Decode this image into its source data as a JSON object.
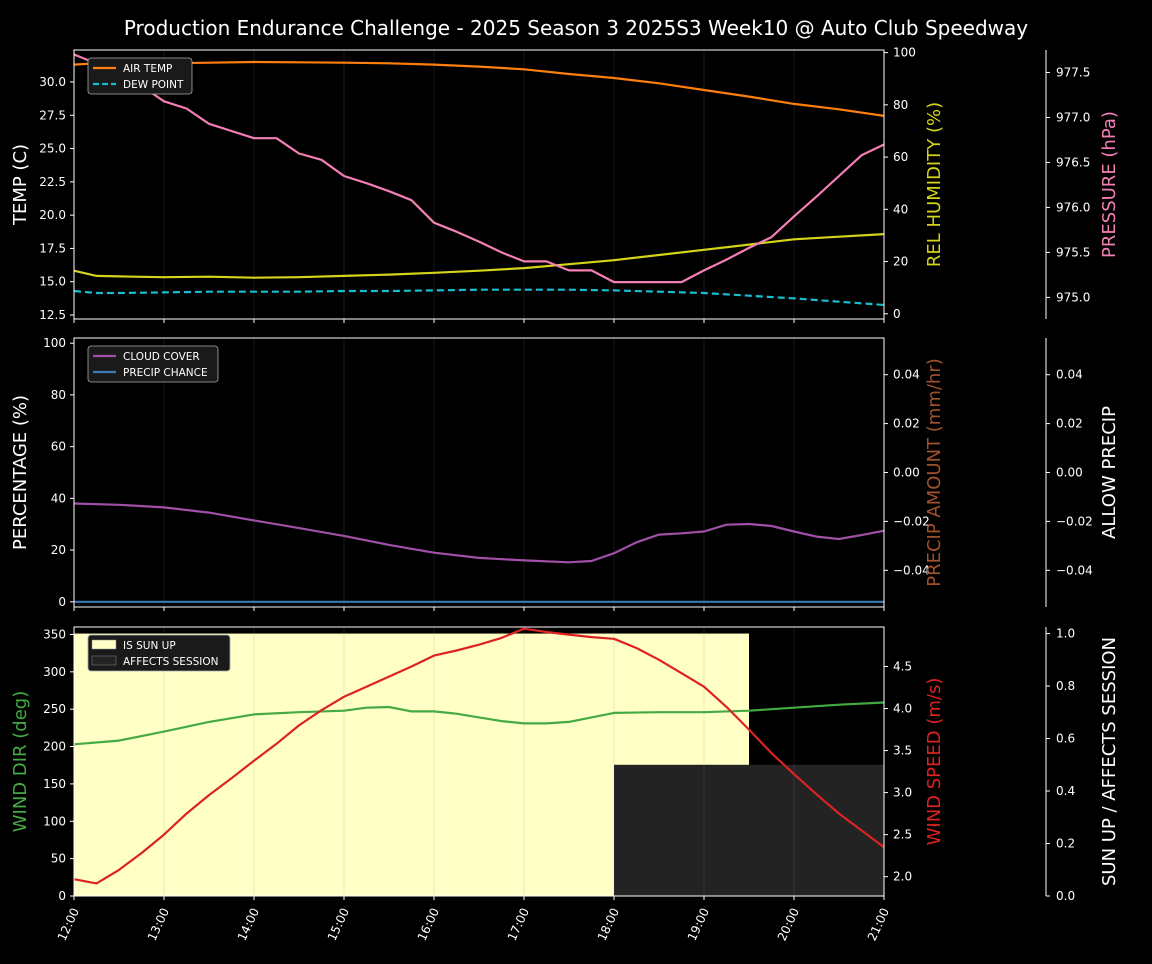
{
  "title": "Production Endurance Challenge - 2025 Season 3 2025S3 Week10 @ Auto Club Speedway",
  "colors": {
    "air_temp": "#ff7f0e",
    "dew_point": "#17becf",
    "humidity": "#d4d41a",
    "pressure": "#f47fb6",
    "cloud": "#a050a8",
    "precip_chance": "#3c7ab4",
    "wind_dir": "#44aa44",
    "wind_speed": "#dd2222",
    "sun_up": "#ffffc6",
    "affects": "#232323",
    "precip_label": "#a0522d",
    "axis": "#ffffff",
    "grid": "#2a2a2a"
  },
  "chart_data": [
    {
      "type": "line",
      "name": "temperature-panel",
      "x_ticks": [
        "12:00",
        "13:00",
        "14:00",
        "15:00",
        "16:00",
        "17:00",
        "18:00",
        "19:00",
        "20:00",
        "21:00"
      ],
      "xlim": [
        0,
        9
      ],
      "left_axis": {
        "label": "TEMP (C)",
        "ylim": [
          12.2,
          32.4
        ],
        "ticks": [
          12.5,
          15.0,
          17.5,
          20.0,
          22.5,
          25.0,
          27.5,
          30.0
        ]
      },
      "right_axis": {
        "label": "REL HUMIDITY (%)",
        "ylim": [
          -2,
          101
        ],
        "ticks": [
          0,
          20,
          40,
          60,
          80,
          100
        ]
      },
      "far_right_axis": {
        "label": "PRESSURE (hPa)",
        "ylim": [
          974.76,
          977.75
        ],
        "ticks": [
          975.0,
          975.5,
          976.0,
          976.5,
          977.0,
          977.5
        ]
      },
      "legend": {
        "placement": "top-left",
        "entries": [
          "AIR TEMP",
          "DEW POINT"
        ]
      },
      "series": [
        {
          "name": "AIR TEMP",
          "axis": "left",
          "style": "solid",
          "color_key": "air_temp",
          "x": [
            0,
            0.25,
            0.5,
            0.75,
            1,
            1.5,
            2,
            2.5,
            3,
            3.5,
            4,
            4.5,
            5,
            5.5,
            6,
            6.5,
            7,
            7.5,
            8,
            8.5,
            9
          ],
          "y": [
            31.3,
            31.4,
            31.4,
            31.4,
            31.4,
            31.45,
            31.5,
            31.48,
            31.45,
            31.4,
            31.3,
            31.15,
            30.95,
            30.6,
            30.3,
            29.9,
            29.4,
            28.9,
            28.35,
            27.95,
            27.45
          ]
        },
        {
          "name": "DEW POINT",
          "axis": "left",
          "style": "dashed",
          "color_key": "dew_point",
          "x": [
            0,
            0.25,
            0.5,
            1,
            1.5,
            2,
            2.5,
            3,
            3.5,
            4,
            4.5,
            5,
            5.5,
            6,
            6.5,
            7,
            7.5,
            8,
            8.5,
            9
          ],
          "y": [
            14.3,
            14.15,
            14.15,
            14.2,
            14.25,
            14.25,
            14.25,
            14.3,
            14.3,
            14.35,
            14.4,
            14.4,
            14.4,
            14.35,
            14.25,
            14.15,
            13.95,
            13.75,
            13.5,
            13.25
          ]
        },
        {
          "name": "REL HUMIDITY",
          "axis": "right",
          "style": "solid",
          "color_key": "humidity",
          "x": [
            0,
            0.25,
            0.5,
            1,
            1.5,
            2,
            2.5,
            3,
            3.5,
            4,
            4.5,
            5,
            5.5,
            6,
            6.5,
            7,
            7.5,
            8,
            8.5,
            9
          ],
          "y": [
            16.5,
            14.5,
            14.3,
            14,
            14.2,
            13.8,
            14,
            14.5,
            15,
            15.7,
            16.5,
            17.5,
            19,
            20.5,
            22.5,
            24.5,
            26.5,
            28.5,
            29.5,
            30.5
          ]
        },
        {
          "name": "PRESSURE",
          "axis": "far_right",
          "style": "solid",
          "color_key": "pressure",
          "x": [
            0,
            0.25,
            0.5,
            0.75,
            1,
            1.25,
            1.5,
            1.75,
            2,
            2.25,
            2.5,
            2.75,
            3,
            3.25,
            3.5,
            3.75,
            4,
            4.25,
            4.5,
            4.75,
            5,
            5.25,
            5.5,
            5.75,
            6,
            6.25,
            6.5,
            6.75,
            7,
            7.25,
            7.5,
            7.75,
            8,
            8.25,
            8.5,
            8.75,
            9
          ],
          "y": [
            977.7,
            977.6,
            977.42,
            977.35,
            977.18,
            977.1,
            976.93,
            976.85,
            976.77,
            976.77,
            976.6,
            976.53,
            976.35,
            976.27,
            976.18,
            976.08,
            975.83,
            975.73,
            975.62,
            975.5,
            975.4,
            975.4,
            975.3,
            975.3,
            975.17,
            975.17,
            975.17,
            975.17,
            975.3,
            975.42,
            975.55,
            975.67,
            975.9,
            976.12,
            976.35,
            976.58,
            976.7
          ]
        }
      ]
    },
    {
      "type": "line",
      "name": "cloud-precip-panel",
      "x_ticks": [
        "12:00",
        "13:00",
        "14:00",
        "15:00",
        "16:00",
        "17:00",
        "18:00",
        "19:00",
        "20:00",
        "21:00"
      ],
      "xlim": [
        0,
        9
      ],
      "left_axis": {
        "label": "PERCENTAGE (%)",
        "ylim": [
          -2,
          102
        ],
        "ticks": [
          0,
          20,
          40,
          60,
          80,
          100
        ]
      },
      "right_axis": {
        "label": "PRECIP AMOUNT (mm/hr)",
        "ylim": [
          -0.055,
          0.055
        ],
        "ticks": [
          "−0.04",
          "−0.02",
          "0.00",
          "0.02",
          "0.04"
        ]
      },
      "far_right_axis": {
        "label": "ALLOW PRECIP",
        "ylim": [
          -0.055,
          0.055
        ],
        "ticks": [
          "−0.04",
          "−0.02",
          "0.00",
          "0.02",
          "0.04"
        ]
      },
      "legend": {
        "placement": "top-left",
        "entries": [
          "CLOUD COVER",
          "PRECIP CHANCE"
        ]
      },
      "series": [
        {
          "name": "CLOUD COVER",
          "axis": "left",
          "color_key": "cloud",
          "x": [
            0,
            0.5,
            1,
            1.5,
            2,
            2.5,
            3,
            3.5,
            4,
            4.5,
            5,
            5.5,
            5.75,
            6,
            6.25,
            6.5,
            6.75,
            7,
            7.25,
            7.5,
            7.75,
            8,
            8.25,
            8.5,
            8.75,
            9
          ],
          "y": [
            38,
            37.5,
            36.5,
            34.5,
            31.5,
            28.5,
            25.5,
            22,
            19,
            17,
            16,
            15.3,
            15.8,
            18.8,
            23,
            26,
            26.5,
            27.2,
            29.8,
            30.1,
            29.3,
            27.2,
            25.2,
            24.3,
            25.8,
            27.5
          ]
        },
        {
          "name": "PRECIP CHANCE",
          "axis": "left",
          "color_key": "precip_chance",
          "x": [
            0,
            9
          ],
          "y": [
            0,
            0
          ]
        }
      ]
    },
    {
      "type": "line",
      "name": "wind-sun-panel",
      "x_ticks": [
        "12:00",
        "13:00",
        "14:00",
        "15:00",
        "16:00",
        "17:00",
        "18:00",
        "19:00",
        "20:00",
        "21:00"
      ],
      "xlim": [
        0,
        9
      ],
      "left_axis": {
        "label": "WIND DIR (deg)",
        "ylim": [
          0,
          360
        ],
        "ticks": [
          0,
          50,
          100,
          150,
          200,
          250,
          300,
          350
        ]
      },
      "right_axis": {
        "label": "WIND SPEED (m/s)",
        "ylim": [
          1.77,
          4.97
        ],
        "ticks": [
          2.0,
          2.5,
          3.0,
          3.5,
          4.0,
          4.5
        ]
      },
      "far_right_axis": {
        "label": "SUN UP / AFFECTS SESSION",
        "ylim": [
          0,
          1.025
        ],
        "ticks": [
          0.0,
          0.2,
          0.4,
          0.6,
          0.8,
          1.0
        ]
      },
      "legend": {
        "placement": "top-left",
        "entries": [
          "IS SUN UP",
          "AFFECTS SESSION"
        ]
      },
      "bands": [
        {
          "name": "IS SUN UP",
          "color_key": "sun_up",
          "x_from": 0,
          "x_to": 7.5,
          "value": 1.0
        },
        {
          "name": "AFFECTS SESSION",
          "color_key": "affects",
          "x_from": 6,
          "x_to": 9,
          "value": 0.5
        }
      ],
      "series": [
        {
          "name": "WIND DIR",
          "axis": "left",
          "color_key": "wind_dir",
          "x": [
            0,
            0.5,
            1,
            1.5,
            1.75,
            2,
            2.5,
            3,
            3.25,
            3.5,
            3.75,
            4,
            4.25,
            4.5,
            4.75,
            5,
            5.25,
            5.5,
            5.75,
            6,
            6.5,
            7,
            7.5,
            8,
            8.5,
            9
          ],
          "y": [
            203,
            208,
            220,
            233,
            238,
            243,
            246,
            248,
            252,
            253,
            247,
            247,
            244,
            239,
            234,
            231,
            231,
            233,
            239,
            245,
            246,
            246,
            248,
            252,
            256,
            259
          ]
        },
        {
          "name": "WIND SPEED",
          "axis": "right",
          "color_key": "wind_speed",
          "x": [
            0,
            0.25,
            0.5,
            0.75,
            1,
            1.25,
            1.5,
            1.75,
            2,
            2.25,
            2.5,
            2.75,
            3,
            3.25,
            3.5,
            3.75,
            4,
            4.25,
            4.5,
            4.75,
            5,
            5.25,
            5.5,
            5.75,
            6,
            6.25,
            6.5,
            6.75,
            7,
            7.25,
            7.5,
            7.75,
            8,
            8.25,
            8.5,
            8.75,
            9
          ],
          "y": [
            1.97,
            1.92,
            2.08,
            2.28,
            2.5,
            2.75,
            2.97,
            3.17,
            3.38,
            3.58,
            3.8,
            3.98,
            4.14,
            4.26,
            4.38,
            4.5,
            4.63,
            4.69,
            4.76,
            4.84,
            4.95,
            4.91,
            4.88,
            4.85,
            4.83,
            4.72,
            4.58,
            4.42,
            4.26,
            4.02,
            3.75,
            3.47,
            3.22,
            2.98,
            2.75,
            2.55,
            2.35
          ]
        }
      ]
    }
  ]
}
